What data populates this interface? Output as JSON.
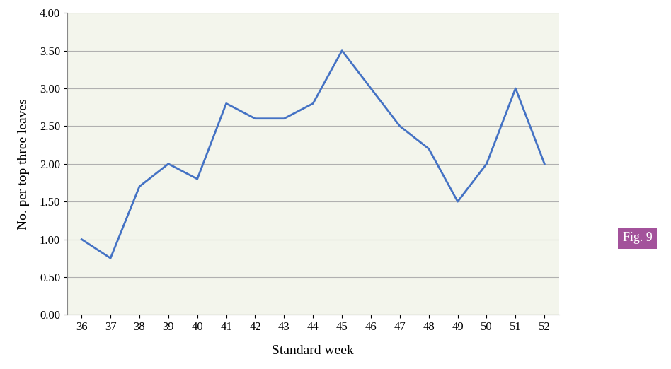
{
  "chart_data": {
    "type": "line",
    "x_label": "Standard week",
    "y_label": "No. per top three leaves",
    "categories": [
      "36",
      "37",
      "38",
      "39",
      "40",
      "41",
      "42",
      "43",
      "44",
      "45",
      "46",
      "47",
      "48",
      "49",
      "50",
      "51",
      "52"
    ],
    "values": [
      1.0,
      0.75,
      1.7,
      2.0,
      1.8,
      2.8,
      2.6,
      2.6,
      2.8,
      3.5,
      3.0,
      2.5,
      2.2,
      1.5,
      2.0,
      3.0,
      2.0
    ],
    "color": "#4472c4",
    "ylim": [
      0,
      4
    ],
    "yticks": [
      {
        "value": 0,
        "label": "0.00"
      },
      {
        "value": 0.5,
        "label": "0.50"
      },
      {
        "value": 1,
        "label": "1.00"
      },
      {
        "value": 1.5,
        "label": "1.50"
      },
      {
        "value": 2,
        "label": "2.00"
      },
      {
        "value": 2.5,
        "label": "2.50"
      },
      {
        "value": 3,
        "label": "3.00"
      },
      {
        "value": 3.5,
        "label": "3.50"
      },
      {
        "value": 4,
        "label": "4.00"
      }
    ],
    "grid": true,
    "annotations": [
      "Fig. 9"
    ]
  }
}
